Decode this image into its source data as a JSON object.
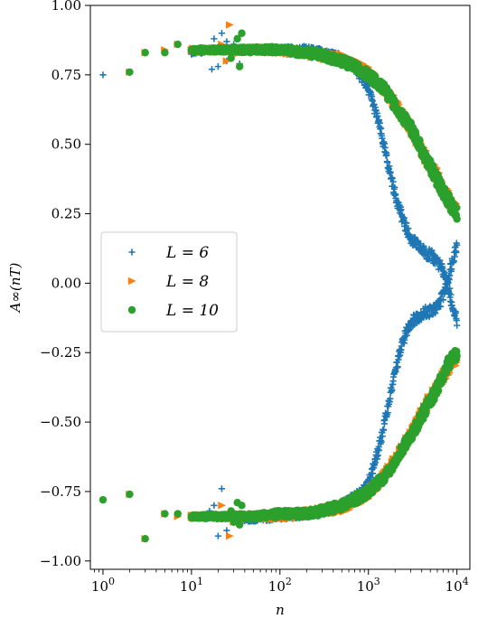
{
  "chart_data": {
    "type": "scatter",
    "title": "",
    "xlabel": "n",
    "ylabel": "A∞(nT)",
    "xscale": "log",
    "xlim": [
      0.72,
      14000
    ],
    "ylim": [
      -1.03,
      1.0
    ],
    "x_ticks": [
      {
        "value": 1,
        "base": "10",
        "exp": "0"
      },
      {
        "value": 10,
        "base": "10",
        "exp": "1"
      },
      {
        "value": 100,
        "base": "10",
        "exp": "2"
      },
      {
        "value": 1000,
        "base": "10",
        "exp": "3"
      },
      {
        "value": 10000,
        "base": "10",
        "exp": "4"
      }
    ],
    "y_ticks": [
      {
        "value": 1.0,
        "label": "1.00"
      },
      {
        "value": 0.75,
        "label": "0.75"
      },
      {
        "value": 0.5,
        "label": "0.50"
      },
      {
        "value": 0.25,
        "label": "0.25"
      },
      {
        "value": 0.0,
        "label": "0.00"
      },
      {
        "value": -0.25,
        "label": "−0.25"
      },
      {
        "value": -0.5,
        "label": "−0.50"
      },
      {
        "value": -0.75,
        "label": "−0.75"
      },
      {
        "value": -1.0,
        "label": "−1.00"
      }
    ],
    "grid": false,
    "legend_position": "center-left",
    "series": [
      {
        "name": "L = 6",
        "marker": "plus",
        "color": "#1f77b4",
        "upper": [
          [
            1,
            0.75
          ],
          [
            2,
            0.76
          ],
          [
            3,
            0.83
          ],
          [
            5,
            0.83
          ],
          [
            7,
            0.86
          ],
          [
            10,
            0.83
          ],
          [
            20,
            0.84
          ],
          [
            50,
            0.84
          ],
          [
            100,
            0.84
          ],
          [
            200,
            0.84
          ],
          [
            300,
            0.83
          ],
          [
            500,
            0.81
          ],
          [
            700,
            0.78
          ],
          [
            1000,
            0.7
          ],
          [
            1300,
            0.58
          ],
          [
            1600,
            0.45
          ],
          [
            2000,
            0.32
          ],
          [
            2500,
            0.22
          ],
          [
            3000,
            0.16
          ],
          [
            4000,
            0.12
          ],
          [
            5000,
            0.1
          ],
          [
            6000,
            0.08
          ],
          [
            7000,
            0.04
          ],
          [
            8000,
            -0.02
          ],
          [
            9000,
            -0.09
          ],
          [
            10000,
            -0.14
          ]
        ],
        "lower": [
          [
            1,
            -0.78
          ],
          [
            2,
            -0.76
          ],
          [
            3,
            -0.92
          ],
          [
            5,
            -0.83
          ],
          [
            7,
            -0.83
          ],
          [
            10,
            -0.84
          ],
          [
            20,
            -0.84
          ],
          [
            50,
            -0.85
          ],
          [
            100,
            -0.84
          ],
          [
            200,
            -0.83
          ],
          [
            300,
            -0.82
          ],
          [
            500,
            -0.8
          ],
          [
            700,
            -0.77
          ],
          [
            1000,
            -0.72
          ],
          [
            1300,
            -0.6
          ],
          [
            1600,
            -0.47
          ],
          [
            2000,
            -0.32
          ],
          [
            2500,
            -0.2
          ],
          [
            3000,
            -0.14
          ],
          [
            4000,
            -0.11
          ],
          [
            5000,
            -0.1
          ],
          [
            6000,
            -0.09
          ],
          [
            7000,
            -0.04
          ],
          [
            8000,
            0.02
          ],
          [
            9000,
            0.09
          ],
          [
            10000,
            0.14
          ]
        ],
        "outliers": [
          [
            18,
            0.88
          ],
          [
            22,
            0.9
          ],
          [
            25,
            0.87
          ],
          [
            20,
            0.78
          ],
          [
            17,
            0.77
          ],
          [
            25,
            0.8
          ],
          [
            30,
            0.86
          ],
          [
            35,
            0.79
          ],
          [
            18,
            -0.8
          ],
          [
            22,
            -0.74
          ],
          [
            20,
            -0.91
          ],
          [
            25,
            -0.89
          ],
          [
            30,
            -0.86
          ],
          [
            16,
            -0.82
          ]
        ]
      },
      {
        "name": "L = 8",
        "marker": "triangle-right",
        "color": "#ff7f0e",
        "upper": [
          [
            2,
            0.76
          ],
          [
            3,
            0.83
          ],
          [
            5,
            0.84
          ],
          [
            7,
            0.86
          ],
          [
            10,
            0.84
          ],
          [
            20,
            0.84
          ],
          [
            50,
            0.84
          ],
          [
            100,
            0.84
          ],
          [
            200,
            0.83
          ],
          [
            300,
            0.82
          ],
          [
            500,
            0.81
          ],
          [
            700,
            0.79
          ],
          [
            1000,
            0.76
          ],
          [
            1500,
            0.7
          ],
          [
            2000,
            0.65
          ],
          [
            3000,
            0.56
          ],
          [
            4000,
            0.48
          ],
          [
            5000,
            0.43
          ],
          [
            6000,
            0.39
          ],
          [
            7000,
            0.34
          ],
          [
            8000,
            0.31
          ],
          [
            9000,
            0.28
          ],
          [
            10000,
            0.27
          ]
        ],
        "lower": [
          [
            2,
            -0.76
          ],
          [
            3,
            -0.92
          ],
          [
            5,
            -0.83
          ],
          [
            7,
            -0.84
          ],
          [
            10,
            -0.84
          ],
          [
            20,
            -0.84
          ],
          [
            50,
            -0.84
          ],
          [
            100,
            -0.84
          ],
          [
            200,
            -0.83
          ],
          [
            300,
            -0.82
          ],
          [
            500,
            -0.81
          ],
          [
            700,
            -0.79
          ],
          [
            1000,
            -0.76
          ],
          [
            1500,
            -0.7
          ],
          [
            2000,
            -0.64
          ],
          [
            3000,
            -0.55
          ],
          [
            4000,
            -0.47
          ],
          [
            5000,
            -0.42
          ],
          [
            6000,
            -0.38
          ],
          [
            7000,
            -0.34
          ],
          [
            8000,
            -0.31
          ],
          [
            9000,
            -0.28
          ],
          [
            10000,
            -0.27
          ]
        ],
        "outliers": [
          [
            27,
            0.93
          ],
          [
            30,
            0.82
          ],
          [
            25,
            0.8
          ],
          [
            22,
            0.86
          ],
          [
            27,
            -0.91
          ],
          [
            22,
            -0.8
          ],
          [
            30,
            -0.86
          ],
          [
            25,
            -0.84
          ]
        ]
      },
      {
        "name": "L = 10",
        "marker": "circle",
        "color": "#2ca02c",
        "upper": [
          [
            2,
            0.76
          ],
          [
            3,
            0.83
          ],
          [
            5,
            0.83
          ],
          [
            7,
            0.86
          ],
          [
            10,
            0.84
          ],
          [
            20,
            0.84
          ],
          [
            50,
            0.84
          ],
          [
            100,
            0.84
          ],
          [
            200,
            0.83
          ],
          [
            300,
            0.82
          ],
          [
            500,
            0.8
          ],
          [
            700,
            0.78
          ],
          [
            1000,
            0.75
          ],
          [
            1500,
            0.7
          ],
          [
            2000,
            0.64
          ],
          [
            3000,
            0.56
          ],
          [
            4000,
            0.48
          ],
          [
            5000,
            0.42
          ],
          [
            6000,
            0.37
          ],
          [
            7000,
            0.33
          ],
          [
            8000,
            0.3
          ],
          [
            9000,
            0.27
          ],
          [
            10000,
            0.25
          ]
        ],
        "lower": [
          [
            1,
            -0.78
          ],
          [
            2,
            -0.76
          ],
          [
            3,
            -0.92
          ],
          [
            5,
            -0.83
          ],
          [
            7,
            -0.83
          ],
          [
            10,
            -0.84
          ],
          [
            20,
            -0.84
          ],
          [
            50,
            -0.84
          ],
          [
            100,
            -0.83
          ],
          [
            200,
            -0.83
          ],
          [
            300,
            -0.82
          ],
          [
            500,
            -0.8
          ],
          [
            700,
            -0.78
          ],
          [
            1000,
            -0.75
          ],
          [
            1500,
            -0.7
          ],
          [
            2000,
            -0.64
          ],
          [
            3000,
            -0.55
          ],
          [
            4000,
            -0.48
          ],
          [
            5000,
            -0.42
          ],
          [
            6000,
            -0.38
          ],
          [
            7000,
            -0.33
          ],
          [
            8000,
            -0.29
          ],
          [
            9000,
            -0.27
          ],
          [
            10000,
            -0.25
          ]
        ],
        "outliers": [
          [
            37,
            0.9
          ],
          [
            33,
            0.88
          ],
          [
            30,
            0.85
          ],
          [
            28,
            0.81
          ],
          [
            35,
            0.78
          ],
          [
            33,
            -0.79
          ],
          [
            37,
            -0.8
          ],
          [
            28,
            -0.82
          ],
          [
            30,
            -0.86
          ],
          [
            35,
            -0.87
          ]
        ]
      }
    ]
  }
}
